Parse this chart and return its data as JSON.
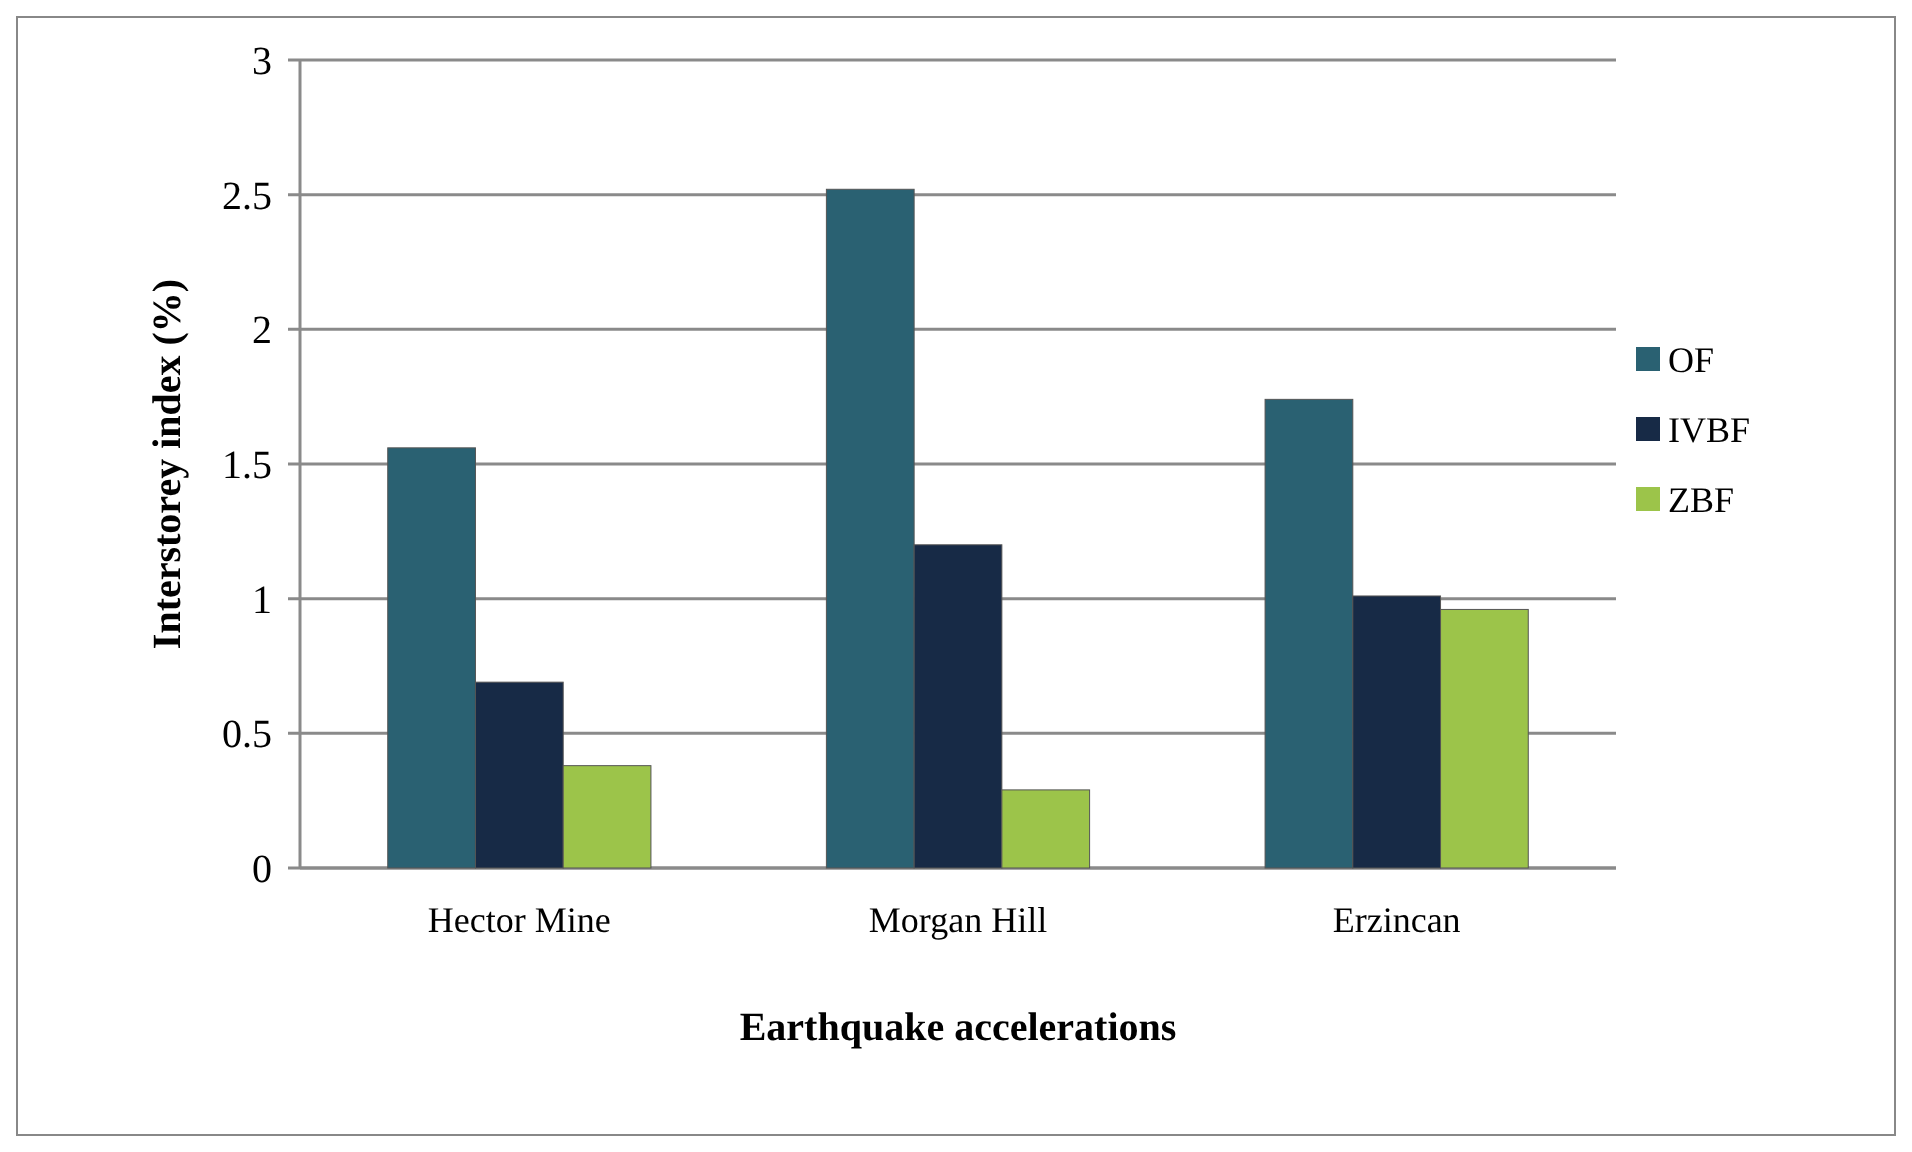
{
  "chart_data": {
    "type": "bar",
    "xlabel": "Earthquake accelerations",
    "ylabel": "Interstorey index (%)",
    "categories": [
      "Hector Mine",
      "Morgan Hill",
      "Erzincan"
    ],
    "series": [
      {
        "name": "OF",
        "color": "#2a6172",
        "values": [
          1.56,
          2.52,
          1.74
        ]
      },
      {
        "name": "IVBF",
        "color": "#172a46",
        "values": [
          0.69,
          1.2,
          1.01
        ]
      },
      {
        "name": "ZBF",
        "color": "#9cc44a",
        "values": [
          0.38,
          0.29,
          0.96
        ]
      }
    ],
    "ylim": [
      0,
      3
    ],
    "yticks": [
      0,
      0.5,
      1,
      1.5,
      2,
      2.5,
      3
    ],
    "grid": "y",
    "legend": "right"
  }
}
